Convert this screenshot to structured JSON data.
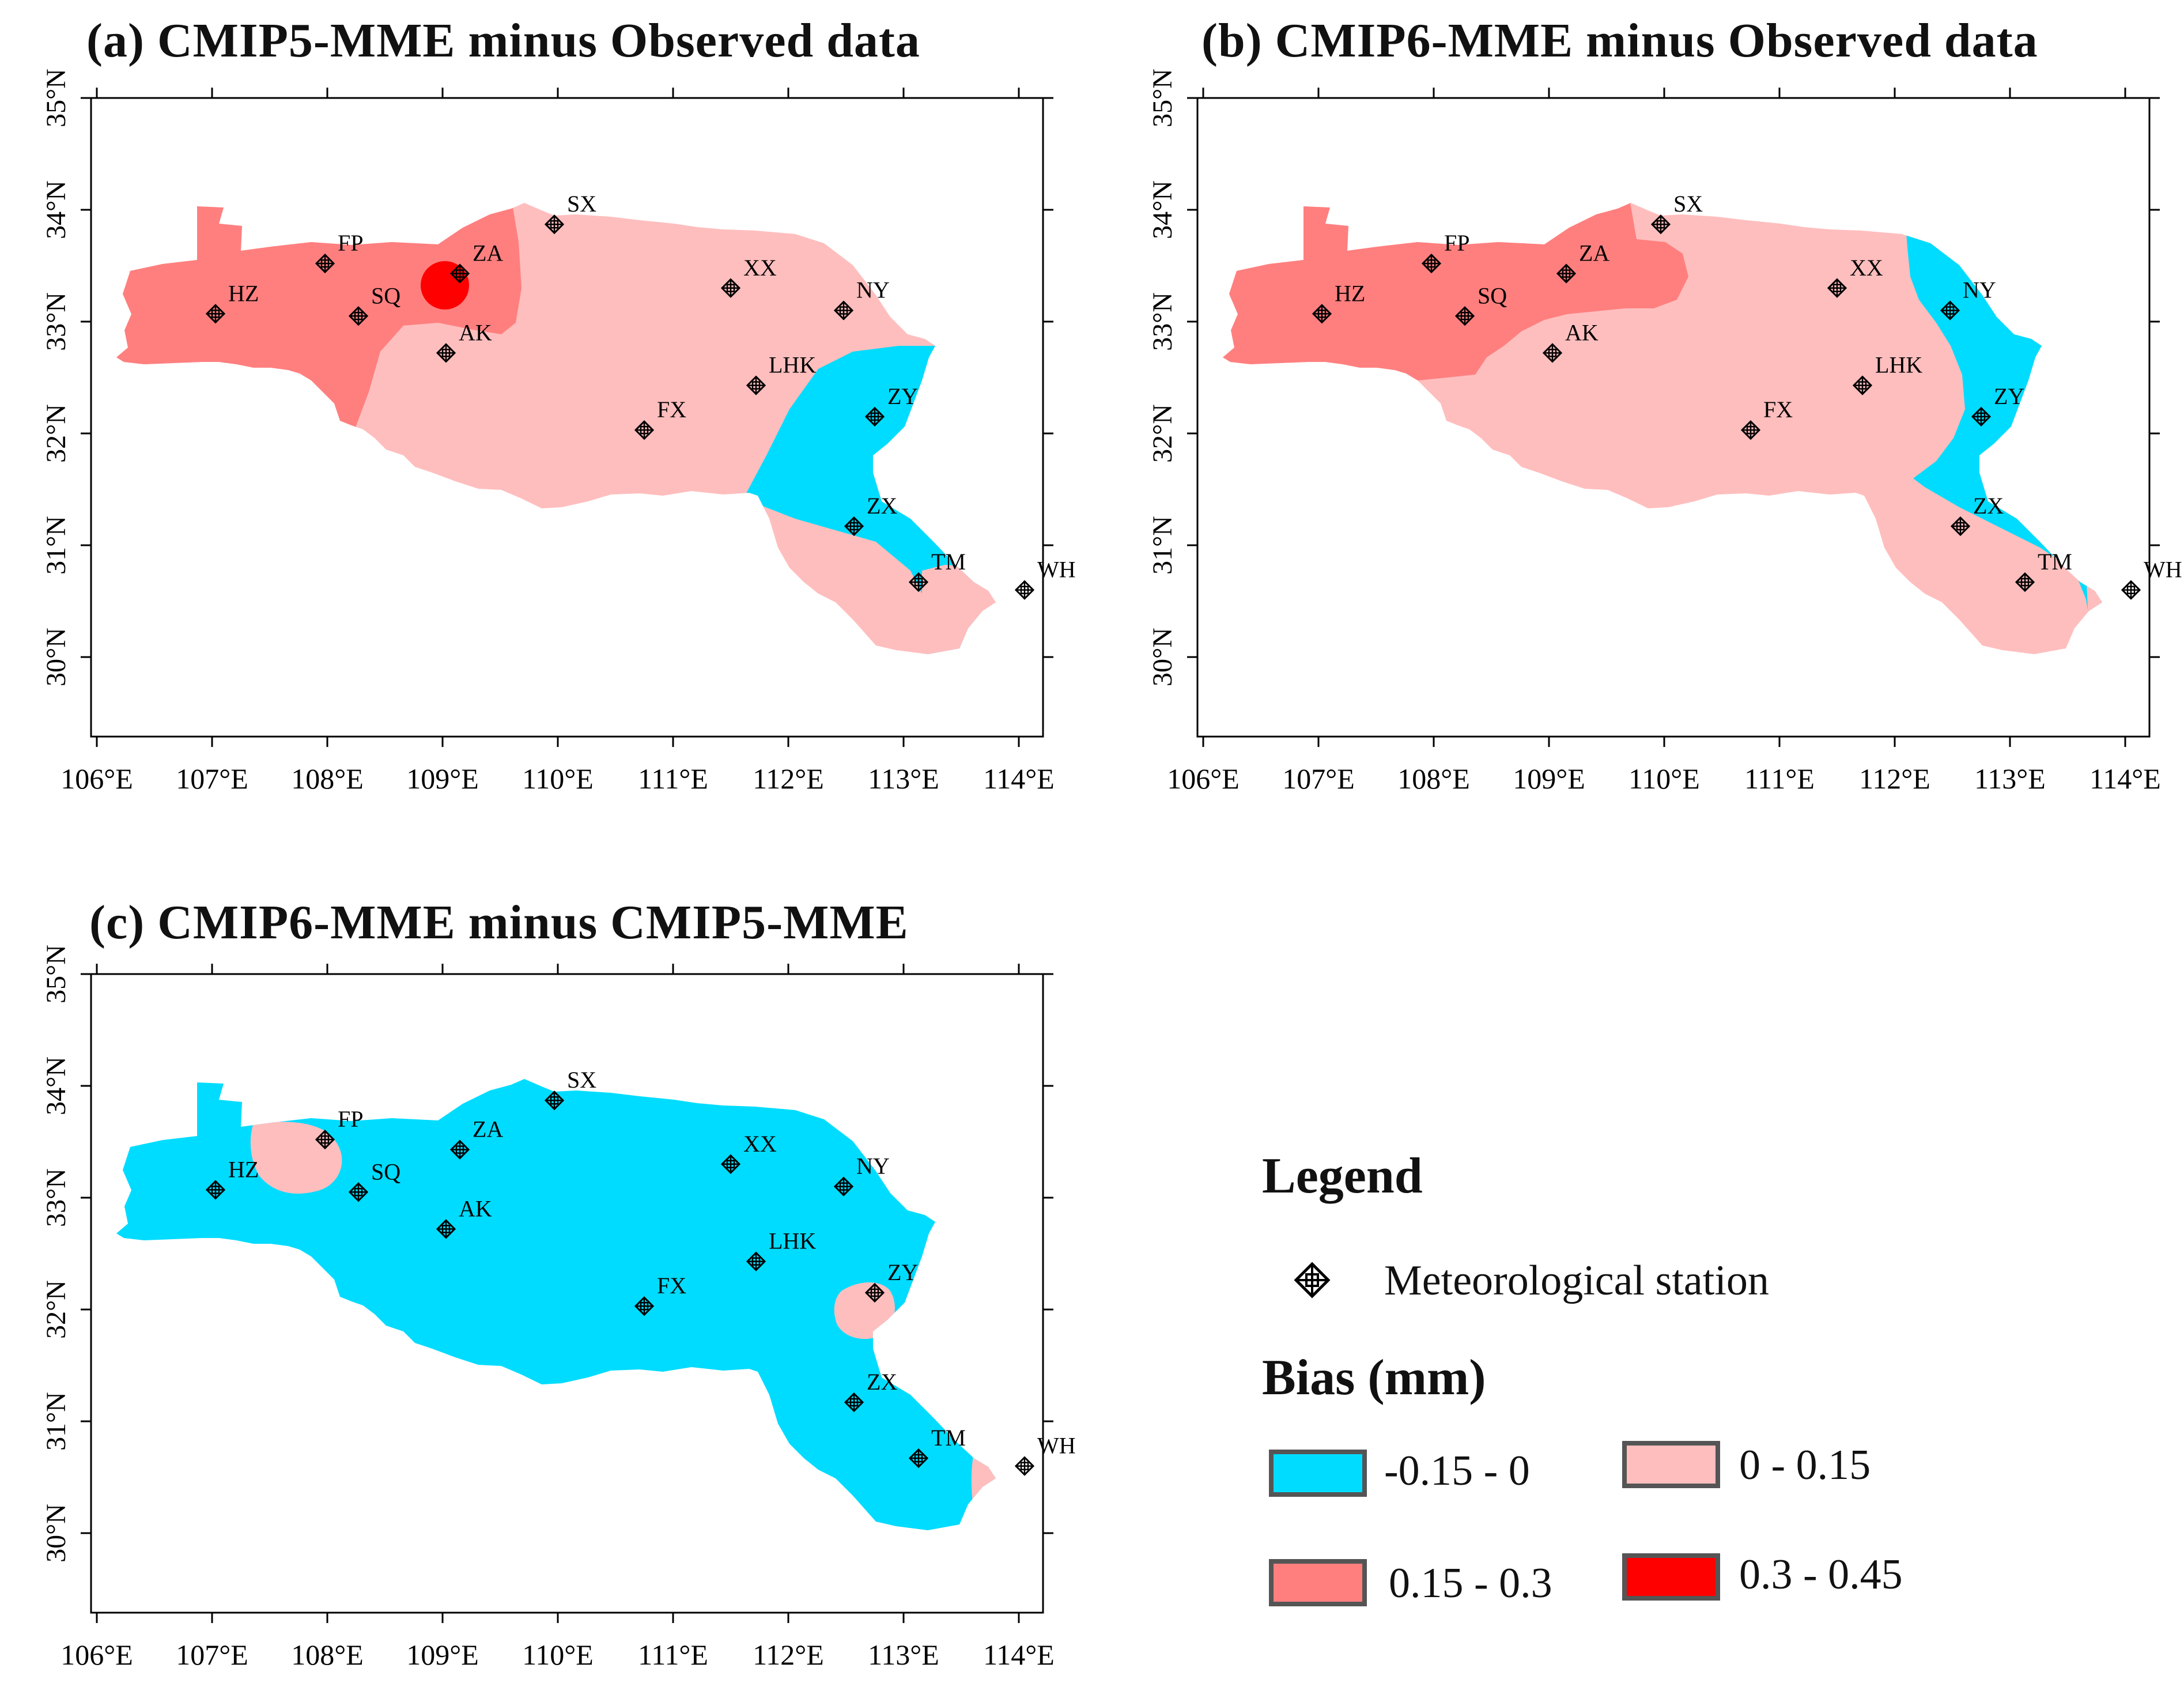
{
  "panels": {
    "a": {
      "title": "(a) CMIP5-MME minus Observed data"
    },
    "b": {
      "title": "(b) CMIP6-MME minus Observed data"
    },
    "c": {
      "title": "(c) CMIP6-MME minus CMIP5-MME"
    }
  },
  "axes": {
    "lat_labels": [
      "30°N",
      "31°N",
      "32°N",
      "33°N",
      "34°N",
      "35°N"
    ],
    "lon_labels": [
      "106°E",
      "107°E",
      "108°E",
      "109°E",
      "110°E",
      "111°E",
      "112°E",
      "113°E",
      "114°E"
    ]
  },
  "stations": [
    {
      "code": "HZ",
      "lon": 107.03,
      "lat": 33.07
    },
    {
      "code": "FP",
      "lon": 107.98,
      "lat": 33.52
    },
    {
      "code": "SQ",
      "lon": 108.27,
      "lat": 33.05
    },
    {
      "code": "ZA",
      "lon": 109.15,
      "lat": 33.43
    },
    {
      "code": "AK",
      "lon": 109.03,
      "lat": 32.72
    },
    {
      "code": "SX",
      "lon": 109.97,
      "lat": 33.87
    },
    {
      "code": "XX",
      "lon": 111.5,
      "lat": 33.3
    },
    {
      "code": "NY",
      "lon": 112.48,
      "lat": 33.1
    },
    {
      "code": "LHK",
      "lon": 111.72,
      "lat": 32.43
    },
    {
      "code": "FX",
      "lon": 110.75,
      "lat": 32.03
    },
    {
      "code": "ZY",
      "lon": 112.75,
      "lat": 32.15
    },
    {
      "code": "ZX",
      "lon": 112.57,
      "lat": 31.17
    },
    {
      "code": "TM",
      "lon": 113.13,
      "lat": 30.67
    },
    {
      "code": "WH",
      "lon": 114.05,
      "lat": 30.6
    }
  ],
  "legend": {
    "title": "Legend",
    "station_label": "Meteorological station",
    "bias_title": "Bias (mm)",
    "classes": [
      {
        "label": "-0.15 - 0",
        "color": "#00dcff"
      },
      {
        "label": "0 - 0.15",
        "color": "#ffbebe"
      },
      {
        "label": "0.15 - 0.3",
        "color": "#ff7f7f"
      },
      {
        "label": "0.3 - 0.45",
        "color": "#ff0000"
      }
    ]
  }
}
